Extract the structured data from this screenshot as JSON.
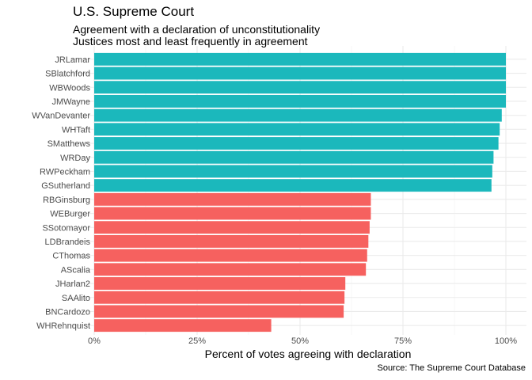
{
  "chart_data": {
    "type": "bar",
    "orientation": "horizontal",
    "title": "U.S. Supreme Court",
    "subtitle": "Agreement with a declaration of unconstitutionality\nJustices most and least frequently in agreement",
    "xlabel": "Percent of votes agreeing with declaration",
    "ylabel": "",
    "caption": "Source: The Supreme Court Database",
    "xlim": [
      0,
      1
    ],
    "x_ticks": [
      "0%",
      "25%",
      "50%",
      "75%",
      "100%"
    ],
    "grid": true,
    "legend": "none",
    "colors": {
      "most": "#1bb8bc",
      "least": "#f6615f"
    },
    "categories": [
      "JRLamar",
      "SBlatchford",
      "WBWoods",
      "JMWayne",
      "WVanDevanter",
      "WHTaft",
      "SMatthews",
      "WRDay",
      "RWPeckham",
      "GSutherland",
      "RBGinsburg",
      "WEBurger",
      "SSotomayor",
      "LDBrandeis",
      "CThomas",
      "AScalia",
      "JHarlan2",
      "SAAlito",
      "BNCardozo",
      "WHRehnquist"
    ],
    "values": [
      1.0,
      1.0,
      1.0,
      1.0,
      0.99,
      0.985,
      0.982,
      0.97,
      0.967,
      0.965,
      0.672,
      0.672,
      0.669,
      0.666,
      0.663,
      0.66,
      0.61,
      0.608,
      0.606,
      0.43
    ],
    "groups": [
      "most",
      "most",
      "most",
      "most",
      "most",
      "most",
      "most",
      "most",
      "most",
      "most",
      "least",
      "least",
      "least",
      "least",
      "least",
      "least",
      "least",
      "least",
      "least",
      "least"
    ]
  }
}
